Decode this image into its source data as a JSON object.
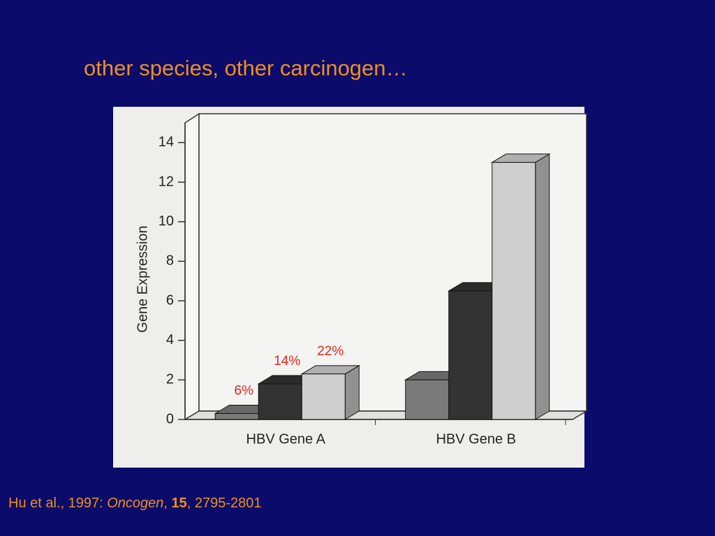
{
  "title": "other species, other carcinogen…",
  "chart_data": {
    "type": "bar3d",
    "y_label": "Gene Expression",
    "categories": [
      "HBV Gene A",
      "HBV Gene B"
    ],
    "series": [
      {
        "color": "#7a7a7a",
        "values": [
          0.3,
          2.0
        ]
      },
      {
        "color": "#333333",
        "values": [
          1.8,
          6.5
        ]
      },
      {
        "color": "#cfcfcf",
        "values": [
          2.3,
          13.0
        ]
      }
    ],
    "annotations": [
      "6%",
      "14%",
      "22%"
    ],
    "ylim": [
      0,
      15
    ],
    "yticks": [
      0,
      2,
      4,
      6,
      8,
      10,
      12,
      14
    ]
  },
  "citation": {
    "authors": "Hu et al., 1997: ",
    "journal": "Oncogen",
    "sep": ", ",
    "volume": "15",
    "pages": ", 2795-2801"
  }
}
